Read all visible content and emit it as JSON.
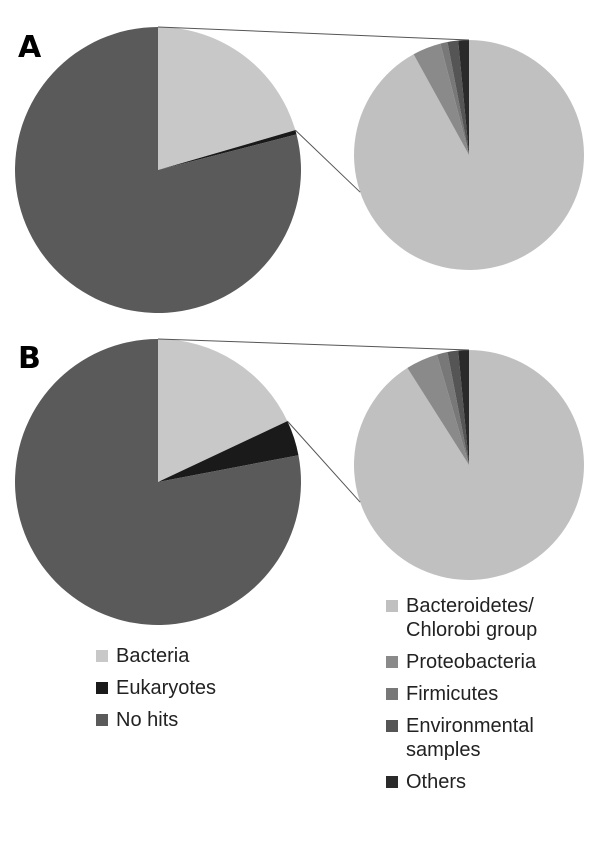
{
  "chart_data": [
    {
      "type": "pie",
      "title": "A",
      "categories": [
        "Bacteria",
        "Eukaryotes",
        "No hits"
      ],
      "values": [
        20.5,
        0.5,
        79
      ],
      "colors": [
        "#c8c8c8",
        "#1a1a1a",
        "#5a5a5a"
      ]
    },
    {
      "type": "pie",
      "categories": [
        "Bacteroidetes/ Chlorobi group",
        "Proteobacteria",
        "Firmicutes",
        "Environmental samples",
        "Others"
      ],
      "values": [
        92,
        4,
        1,
        1.5,
        1.5
      ],
      "colors": [
        "#c0c0c0",
        "#8a8a8a",
        "#787878",
        "#555555",
        "#2a2a2a"
      ]
    },
    {
      "type": "pie",
      "title": "B",
      "categories": [
        "Bacteria",
        "Eukaryotes",
        "No hits"
      ],
      "values": [
        18,
        4,
        78
      ],
      "colors": [
        "#c8c8c8",
        "#1a1a1a",
        "#5a5a5a"
      ]
    },
    {
      "type": "pie",
      "categories": [
        "Bacteroidetes/ Chlorobi group",
        "Proteobacteria",
        "Firmicutes",
        "Environmental samples",
        "Others"
      ],
      "values": [
        91,
        4.5,
        1.5,
        1.5,
        1.5
      ],
      "colors": [
        "#c0c0c0",
        "#8a8a8a",
        "#787878",
        "#555555",
        "#2a2a2a"
      ]
    }
  ]
}
